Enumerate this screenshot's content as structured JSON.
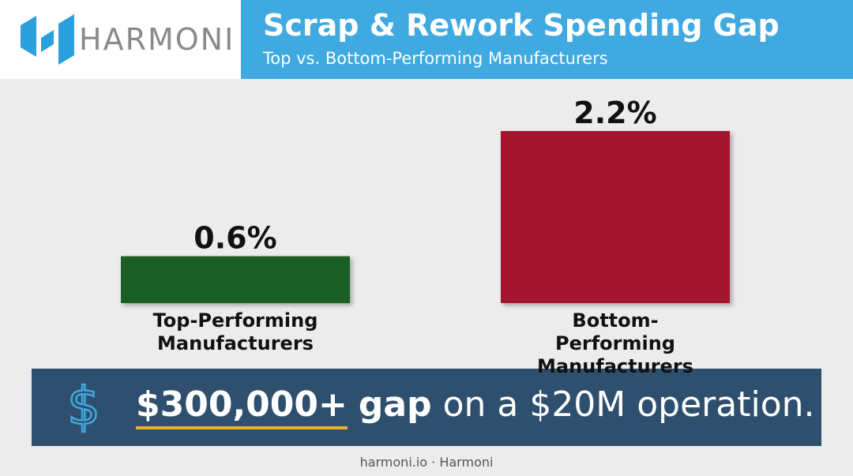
{
  "header": {
    "brand": "HARMONI"
  },
  "chart_data": {
    "type": "bar",
    "title": "Scrap & Rework Spending Gap",
    "subtitle": "Top vs. Bottom-Performing Manufacturers",
    "categories": [
      "Top-Performing Manufacturers",
      "Bottom-Performing Manufacturers"
    ],
    "values": [
      0.6,
      2.2
    ],
    "value_labels": [
      "0.6%",
      "2.2%"
    ],
    "colors": [
      "#1f5e25",
      "#a3192e"
    ]
  },
  "callout": {
    "amount": "$300,000+",
    "word": "gap",
    "rest": "on a $20M operation."
  },
  "footer": "harmoni.io · Harmoni"
}
